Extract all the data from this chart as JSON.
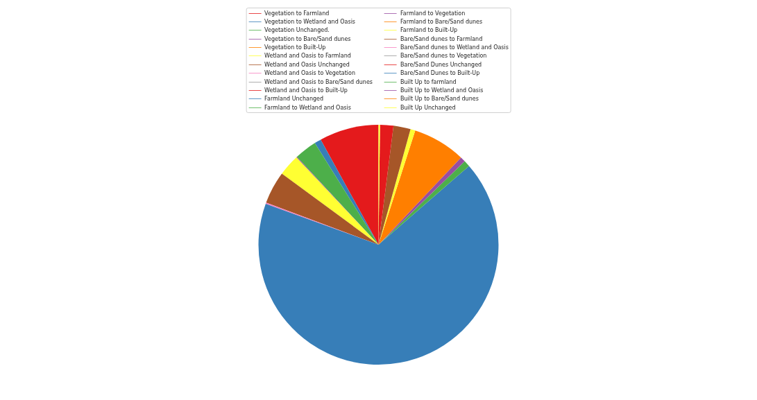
{
  "chart_data": {
    "type": "pie",
    "legend": "top",
    "categories": [
      "Vegetation to Farmland",
      "Vegetation to Wetland and Oasis",
      "Vegetation Unchanged.",
      "Vegetation to Bare/Sand dunes",
      "Vegetation to Built-Up",
      "Wetland and Oasis to Farmland",
      "Wetland and Oasis Unchanged",
      "Wetland and Oasis to Vegetation",
      "Wetland and Oasis to Bare/Sand dunes",
      "Wetland and Oasis to Built-Up",
      "Farmland Unchanged",
      "Farmland to Wetland and Oasis",
      "Farmland to Vegetation",
      "Farmland to Bare/Sand dunes",
      "Farmland to Built-Up",
      "Bare/Sand dunes to Farmland",
      "Bare/Sand dunes to Wetland and Oasis",
      "Bare/Sand dunes to Vegetation",
      "Bare/Sand Dunes Unchanged",
      "Bare/Sand Dunes to Built-Up",
      "Built Up to farmland",
      "Built Up to Wetland and Oasis",
      "Built Up to Bare/Sand dunes",
      "Built Up Unchanged"
    ],
    "values": [
      8.0,
      0.9,
      3.0,
      0.1,
      0,
      2.9,
      4.4,
      0.15,
      0,
      0,
      66.95,
      0.85,
      0.7,
      7.1,
      0.65,
      2.3,
      0,
      0,
      1.8,
      0,
      0,
      0,
      0,
      0.2
    ],
    "colors": [
      "#e41a1c",
      "#377eb8",
      "#4daf4a",
      "#984ea3",
      "#ff7f00",
      "#ffff33",
      "#a65628",
      "#f781bf",
      "#999999",
      "#e41a1c",
      "#377eb8",
      "#4daf4a",
      "#984ea3",
      "#ff7f00",
      "#ffff33",
      "#a65628",
      "#f781bf",
      "#999999",
      "#e41a1c",
      "#377eb8",
      "#4daf4a",
      "#984ea3",
      "#ff7f00",
      "#ffff33"
    ]
  }
}
